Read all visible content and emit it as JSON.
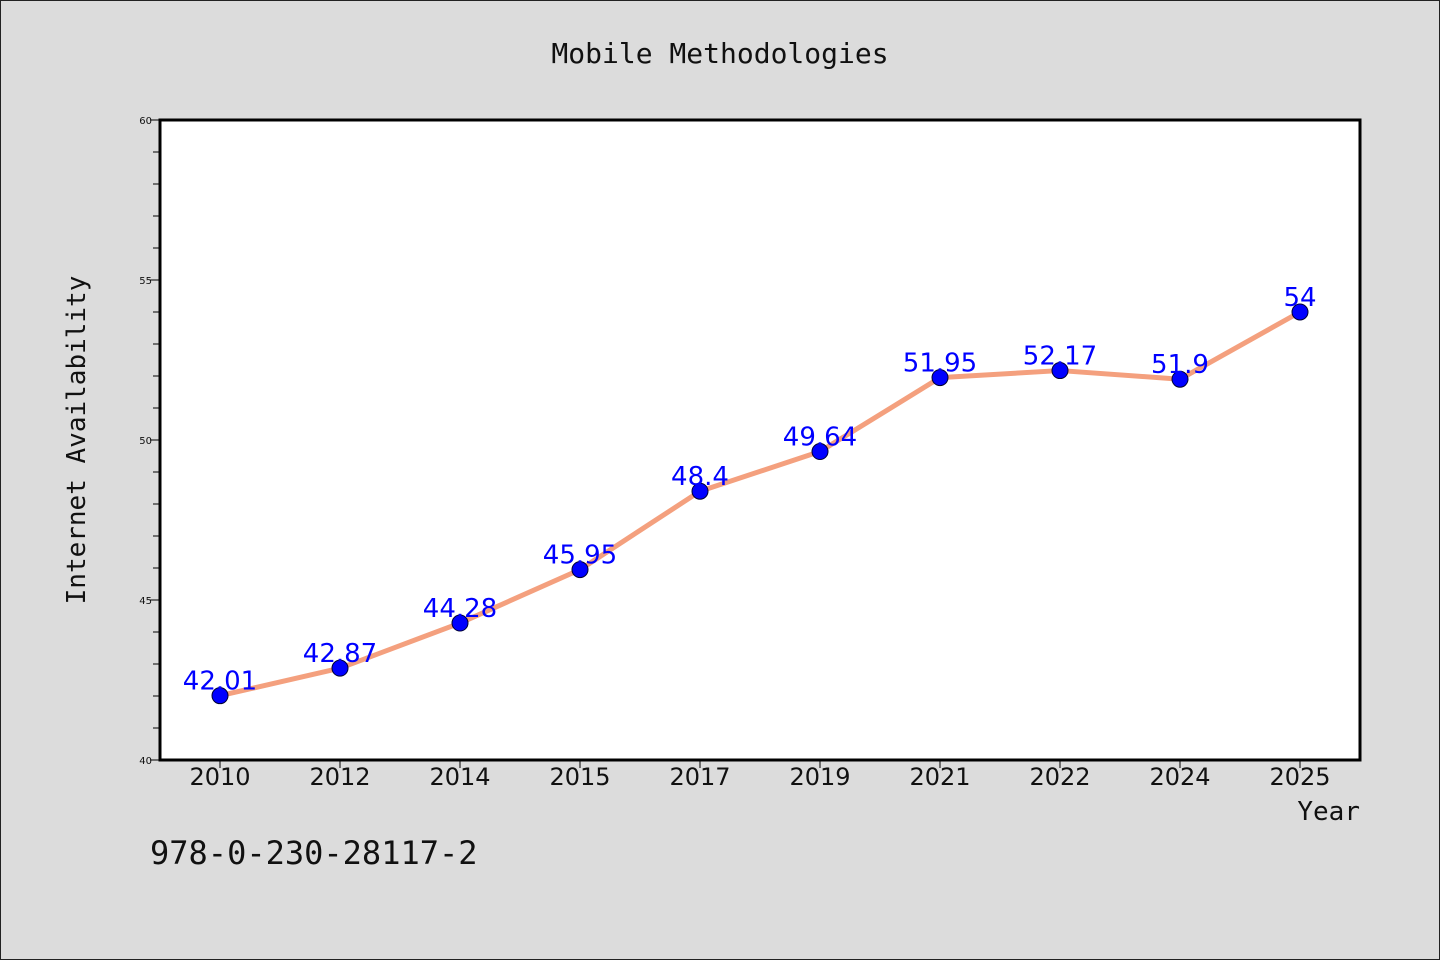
{
  "chart_data": {
    "type": "line",
    "title": "Mobile Methodologies",
    "xlabel": "Year",
    "ylabel": "Internet Availability",
    "categories": [
      "2010",
      "2012",
      "2014",
      "2015",
      "2017",
      "2019",
      "2021",
      "2022",
      "2024",
      "2025"
    ],
    "series": [
      {
        "values": [
          42.01,
          42.87,
          44.28,
          45.95,
          48.4,
          49.64,
          51.95,
          52.17,
          51.9,
          54
        ],
        "line_color": "#f4a07e",
        "marker_color": "#0000ff"
      }
    ],
    "data_labels": [
      "42.01",
      "42.87",
      "44.28",
      "45.95",
      "48.4",
      "49.64",
      "51.95",
      "52.17",
      "51.9",
      "54"
    ],
    "y_ticks": [
      "40",
      "45",
      "50",
      "55",
      "60"
    ],
    "ylim": [
      40,
      60
    ],
    "grid": false,
    "legend": "none"
  },
  "footer": {
    "text": "978-0-230-28117-2"
  },
  "colors": {
    "background": "#dcdcdc",
    "plot_background": "#ffffff",
    "line": "#f4a07e",
    "marker": "#0000ff",
    "data_label": "#0000ff"
  }
}
